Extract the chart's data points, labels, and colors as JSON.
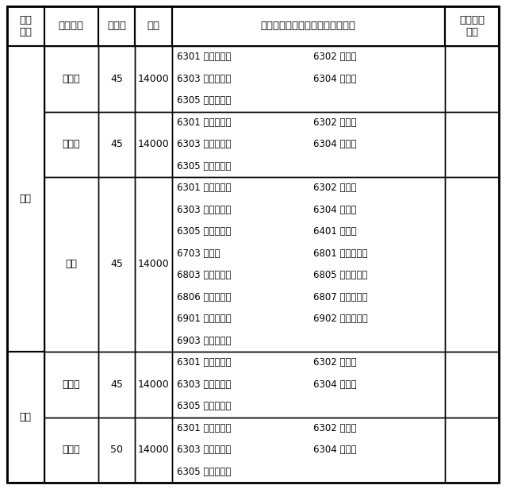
{
  "headers": [
    "报考\n类别",
    "专业名称",
    "计划数",
    "学费",
    "对报考者专科阶段所学专业等要求",
    "专业课程\n要求"
  ],
  "col_ratios": [
    0.075,
    0.11,
    0.075,
    0.075,
    0.555,
    0.11
  ],
  "row_line_heights": [
    2,
    3,
    3,
    8,
    3,
    3
  ],
  "rows_info": [
    {
      "cat": "文科",
      "cat_span": [
        1,
        3
      ],
      "major": "金融学",
      "plan": "45",
      "fee": "14000",
      "reqs": [
        [
          "6301 财政税务类",
          "6302 金融类"
        ],
        [
          "6303 财务会计类",
          "6304 统计类"
        ],
        [
          "6305 经济贸易类",
          ""
        ]
      ]
    },
    {
      "cat": "",
      "cat_span": null,
      "major": "会计学",
      "plan": "45",
      "fee": "14000",
      "reqs": [
        [
          "6301 财政税务类",
          "6302 金融类"
        ],
        [
          "6303 财务会计类",
          "6304 统计类"
        ],
        [
          "6305 经济贸易类",
          ""
        ]
      ]
    },
    {
      "cat": "",
      "cat_span": null,
      "major": "法学",
      "plan": "45",
      "fee": "14000",
      "reqs": [
        [
          "6301 财政税务类",
          "6302 金融类"
        ],
        [
          "6303 财务会计类",
          "6304 统计类"
        ],
        [
          "6305 经济贸易类",
          "6401 旅游类"
        ],
        [
          "6703 文秘类",
          "6801 公安管理类"
        ],
        [
          "6803 公安技术类",
          "6805 法律实务类"
        ],
        [
          "6806 法律执行类",
          "6807 司法技术类"
        ],
        [
          "6901 公共事业类",
          "6902 公共管理类"
        ],
        [
          "6903 公共服务类",
          ""
        ]
      ]
    },
    {
      "cat": "理科",
      "cat_span": [
        4,
        5
      ],
      "major": "金融学",
      "plan": "45",
      "fee": "14000",
      "reqs": [
        [
          "6301 财政税务类",
          "6302 金融类"
        ],
        [
          "6303 财务会计类",
          "6304 统计类"
        ],
        [
          "6305 经济贸易类",
          ""
        ]
      ]
    },
    {
      "cat": "",
      "cat_span": null,
      "major": "会计学",
      "plan": "50",
      "fee": "14000",
      "reqs": [
        [
          "6301 财政税务类",
          "6302 金融类"
        ],
        [
          "6303 财务会计类",
          "6304 统计类"
        ],
        [
          "6305 经济贸易类",
          ""
        ]
      ]
    }
  ],
  "bg_color": "#ffffff",
  "border_color": "#000000",
  "text_color": "#000000",
  "font_size": 9,
  "header_font_size": 9.5,
  "line_unit": 0.048,
  "header_lines": 2
}
